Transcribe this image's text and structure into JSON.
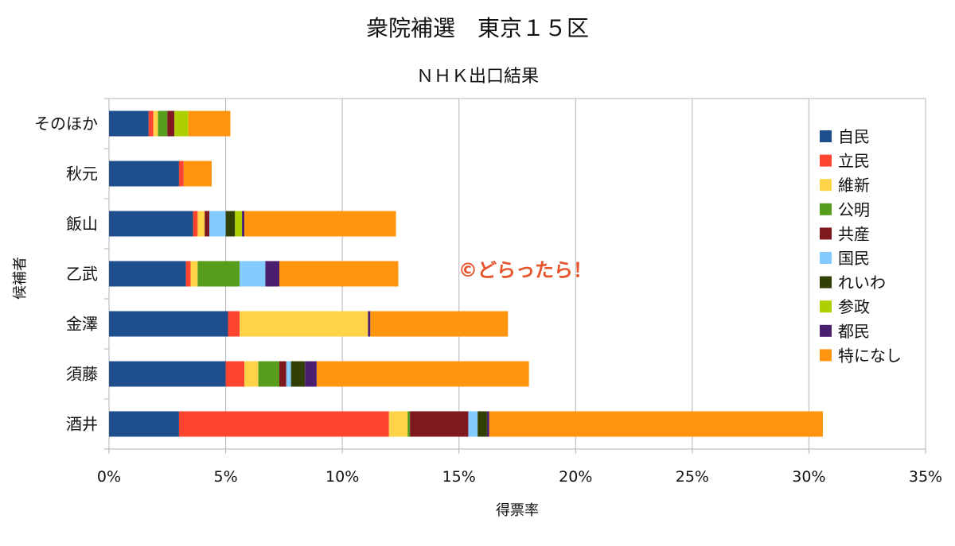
{
  "chart_data": {
    "type": "bar",
    "orientation": "horizontal",
    "stacked": true,
    "title": "衆院補選　東京１５区",
    "subtitle": "ＮＨＫ出口結果",
    "xlabel": "得票率",
    "ylabel": "候補者",
    "xlim": [
      0,
      35
    ],
    "xticks": [
      "0%",
      "5%",
      "10%",
      "15%",
      "20%",
      "25%",
      "30%",
      "35%"
    ],
    "grid": true,
    "legend_position": "right",
    "categories": [
      "そのほか",
      "秋元",
      "飯山",
      "乙武",
      "金澤",
      "須藤",
      "酒井"
    ],
    "series": [
      {
        "name": "自民",
        "color": "#1f4e8c",
        "values": [
          1.7,
          3.0,
          3.6,
          3.3,
          5.1,
          5.0,
          3.0
        ]
      },
      {
        "name": "立民",
        "color": "#ff4530",
        "values": [
          0.2,
          0.2,
          0.2,
          0.2,
          0.5,
          0.8,
          9.0
        ]
      },
      {
        "name": "維新",
        "color": "#ffd348",
        "values": [
          0.2,
          0.0,
          0.3,
          0.3,
          5.5,
          0.6,
          0.8
        ]
      },
      {
        "name": "公明",
        "color": "#579d1c",
        "values": [
          0.4,
          0.0,
          0.0,
          1.8,
          0.0,
          0.9,
          0.1
        ]
      },
      {
        "name": "共産",
        "color": "#7e1a1f",
        "values": [
          0.3,
          0.0,
          0.2,
          0.0,
          0.0,
          0.3,
          2.5
        ]
      },
      {
        "name": "国民",
        "color": "#83caff",
        "values": [
          0.0,
          0.0,
          0.7,
          1.1,
          0.0,
          0.2,
          0.4
        ]
      },
      {
        "name": "れいわ",
        "color": "#314004",
        "values": [
          0.0,
          0.0,
          0.4,
          0.0,
          0.0,
          0.6,
          0.4
        ]
      },
      {
        "name": "参政",
        "color": "#aecf00",
        "values": [
          0.6,
          0.0,
          0.3,
          0.0,
          0.0,
          0.0,
          0.0
        ]
      },
      {
        "name": "都民",
        "color": "#4b1f6f",
        "values": [
          0.0,
          0.0,
          0.1,
          0.6,
          0.1,
          0.5,
          0.1
        ]
      },
      {
        "name": "特になし",
        "color": "#ff950e",
        "values": [
          1.8,
          1.2,
          6.5,
          5.1,
          5.9,
          9.1,
          14.3
        ]
      }
    ]
  },
  "watermark": "©どらったら！"
}
